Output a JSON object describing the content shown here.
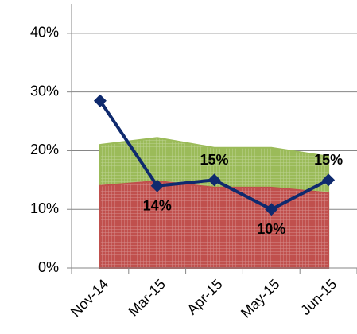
{
  "chart_data": {
    "type": "line",
    "categories": [
      "Nov-14",
      "Mar-15",
      "Apr-15",
      "May-15",
      "Jun-15"
    ],
    "series": [
      {
        "style": "area",
        "color": "#9bbb59",
        "values": [
          21,
          22.2,
          20.5,
          20.5,
          19
        ]
      },
      {
        "style": "area",
        "color": "#c0504d",
        "values": [
          14,
          14.8,
          13.7,
          13.7,
          12.8
        ]
      },
      {
        "style": "line",
        "color": "#0f2a6e",
        "values": [
          28.5,
          14,
          15,
          10,
          15
        ],
        "value_labels": [
          null,
          "14%",
          "15%",
          "10%",
          "15%"
        ]
      }
    ],
    "ylim": [
      0,
      45
    ],
    "yticks": [
      {
        "value": 0,
        "label": "0%"
      },
      {
        "value": 10,
        "label": "10%"
      },
      {
        "value": 20,
        "label": "20%"
      },
      {
        "value": 30,
        "label": "30%"
      },
      {
        "value": 40,
        "label": "40%"
      }
    ],
    "grid": true
  }
}
